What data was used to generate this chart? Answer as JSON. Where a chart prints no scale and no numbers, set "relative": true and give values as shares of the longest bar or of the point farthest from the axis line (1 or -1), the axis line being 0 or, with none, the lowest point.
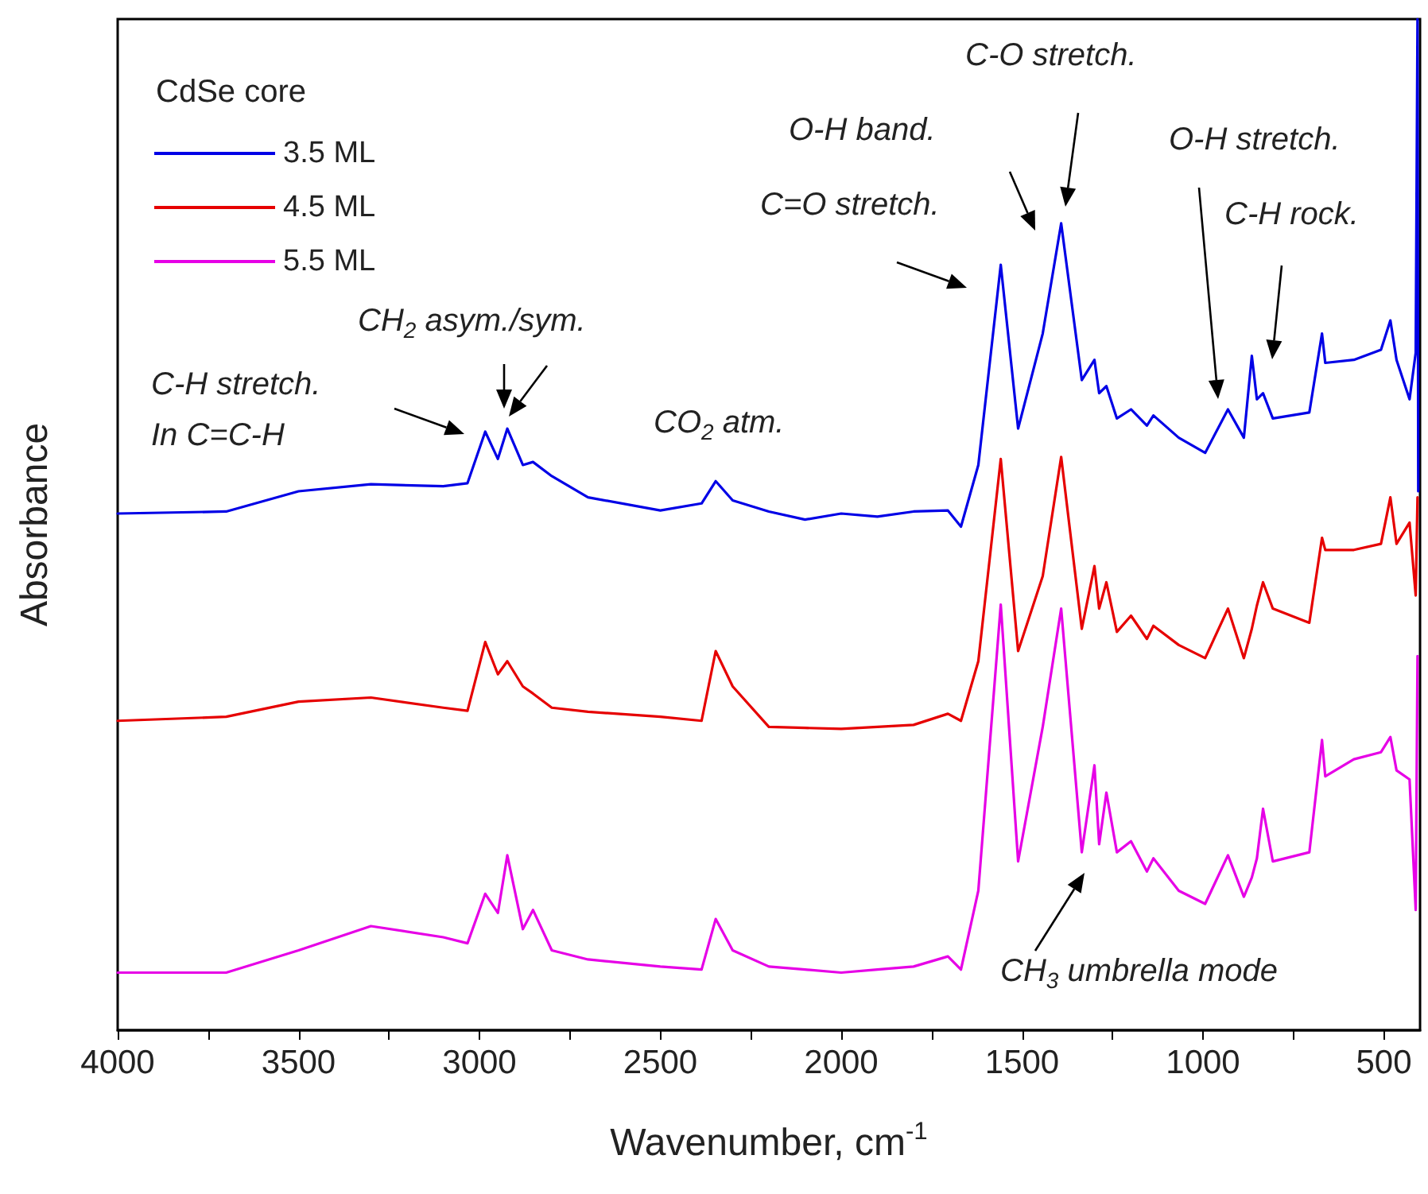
{
  "chart_data": {
    "type": "line",
    "relative": true,
    "xlabel": "Wavenumber, cm$^{-1}$",
    "ylabel": "Absorbance",
    "legend_title": "CdSe core",
    "legend": "top left",
    "grid": false,
    "xlim": [
      4000,
      400
    ],
    "xticks": [
      4000,
      {
        "value": 3750,
        "label": null
      },
      3500,
      {
        "value": 3250,
        "label": null
      },
      3000,
      {
        "value": 2750,
        "label": null
      },
      2500,
      {
        "value": 2250,
        "label": null
      },
      2000,
      {
        "value": 1750,
        "label": null
      },
      1500,
      {
        "value": 1250,
        "label": null
      },
      1000,
      {
        "value": 750,
        "label": null
      },
      500
    ],
    "x": [
      4000,
      3700,
      3500,
      3300,
      3100,
      3033,
      2984,
      2949,
      2923,
      2880,
      2852,
      2800,
      2700,
      2500,
      2386,
      2347,
      2300,
      2200,
      2100,
      2000,
      1900,
      1800,
      1705,
      1669,
      1621,
      1559,
      1511,
      1443,
      1392,
      1335,
      1300,
      1287,
      1267,
      1238,
      1199,
      1155,
      1137,
      1067,
      994,
      931,
      887,
      865,
      851,
      834,
      807,
      706,
      671,
      662,
      583,
      508,
      482,
      465,
      429,
      412,
      407,
      405
    ],
    "series": [
      {
        "name": "3.5 ML",
        "color": "#0000e6",
        "values": [
          0.511,
          0.513,
          0.533,
          0.54,
          0.538,
          0.541,
          0.592,
          0.565,
          0.595,
          0.559,
          0.562,
          0.548,
          0.527,
          0.514,
          0.521,
          0.543,
          0.524,
          0.513,
          0.505,
          0.511,
          0.508,
          0.513,
          0.514,
          0.498,
          0.559,
          0.757,
          0.595,
          0.689,
          0.798,
          0.643,
          0.663,
          0.63,
          0.637,
          0.605,
          0.614,
          0.598,
          0.608,
          0.586,
          0.571,
          0.614,
          0.586,
          0.667,
          0.624,
          0.63,
          0.605,
          0.611,
          0.689,
          0.66,
          0.663,
          0.673,
          0.702,
          0.663,
          0.624,
          0.67,
          1,
          0.533
        ]
      },
      {
        "name": "4.5 ML",
        "color": "#e60000",
        "values": [
          0.306,
          0.31,
          0.325,
          0.329,
          0.319,
          0.316,
          0.384,
          0.352,
          0.365,
          0.34,
          0.333,
          0.319,
          0.315,
          0.31,
          0.306,
          0.375,
          0.34,
          0.3,
          0.299,
          0.298,
          0.3,
          0.302,
          0.313,
          0.306,
          0.365,
          0.565,
          0.375,
          0.449,
          0.567,
          0.397,
          0.459,
          0.417,
          0.443,
          0.394,
          0.41,
          0.387,
          0.4,
          0.381,
          0.368,
          0.417,
          0.368,
          0.397,
          0.42,
          0.443,
          0.417,
          0.403,
          0.487,
          0.475,
          0.475,
          0.481,
          0.527,
          0.481,
          0.502,
          0.43,
          0.527,
          null
        ]
      },
      {
        "name": "5.5 ML",
        "color": "#e600e6",
        "values": [
          0.057,
          0.057,
          0.079,
          0.103,
          0.092,
          0.086,
          0.135,
          0.116,
          0.173,
          0.1,
          0.119,
          0.079,
          0.07,
          0.063,
          0.06,
          0.11,
          0.079,
          0.063,
          0.06,
          0.057,
          0.06,
          0.063,
          0.073,
          0.06,
          0.138,
          0.421,
          0.167,
          0.3,
          0.417,
          0.176,
          0.262,
          0.184,
          0.235,
          0.176,
          0.187,
          0.157,
          0.17,
          0.138,
          0.125,
          0.173,
          0.132,
          0.151,
          0.17,
          0.219,
          0.167,
          0.176,
          0.287,
          0.251,
          0.268,
          0.275,
          0.29,
          0.257,
          0.248,
          0.119,
          0.37,
          null
        ]
      }
    ],
    "annotations": [
      "C-H stretch.\nIn C=C-H",
      "CH$_{2}$ asym./sym.",
      "CO$_{2}$ atm.",
      "C=O stretch.",
      "O-H band.",
      "C-O stretch.",
      "O-H stretch.",
      "C-H rock.",
      "CH$_{3}$ umbrella mode"
    ]
  }
}
